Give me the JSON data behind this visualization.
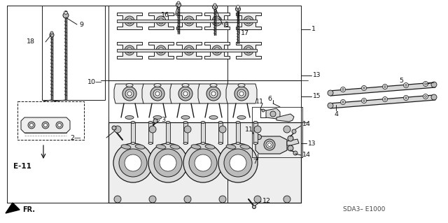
{
  "bg_color": "#ffffff",
  "diagram_code": "SDA3– E1000",
  "line_color": "#1a1a1a",
  "text_color": "#111111",
  "gray_fill": "#d8d8d8",
  "light_gray": "#eeeeee",
  "mid_gray": "#bbbbbb",
  "parts": {
    "1_label": [
      425,
      42,
      "1"
    ],
    "2_label": [
      108,
      197,
      "2"
    ],
    "3_label": [
      228,
      172,
      "3"
    ],
    "4_label": [
      481,
      210,
      "4"
    ],
    "5_label": [
      567,
      118,
      "5"
    ],
    "6_label": [
      385,
      147,
      "6"
    ],
    "7_label": [
      372,
      218,
      "7"
    ],
    "8_label": [
      316,
      35,
      "8"
    ],
    "9_label": [
      140,
      52,
      "9"
    ],
    "10_label": [
      133,
      107,
      "10"
    ],
    "11a_label": [
      370,
      158,
      "11"
    ],
    "11b_label": [
      370,
      191,
      "11"
    ],
    "12_label": [
      347,
      280,
      "12"
    ],
    "13a_label": [
      369,
      108,
      "13"
    ],
    "13b_label": [
      333,
      205,
      "13"
    ],
    "14a_label": [
      418,
      185,
      "14"
    ],
    "14b_label": [
      418,
      200,
      "14"
    ],
    "15_label": [
      362,
      138,
      "15"
    ],
    "16_label": [
      249,
      22,
      "16"
    ],
    "17_label": [
      339,
      50,
      "17"
    ],
    "18_label": [
      64,
      88,
      "18"
    ],
    "e11_label": [
      32,
      238,
      "E-11"
    ]
  }
}
